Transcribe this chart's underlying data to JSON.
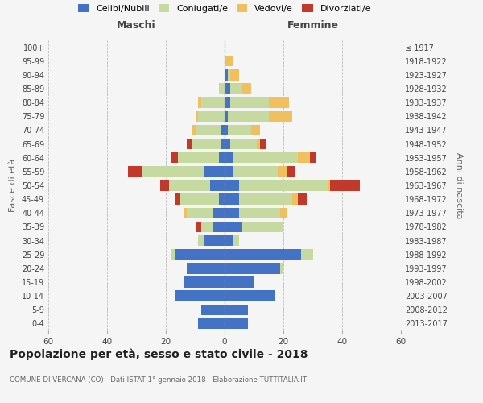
{
  "age_groups": [
    "0-4",
    "5-9",
    "10-14",
    "15-19",
    "20-24",
    "25-29",
    "30-34",
    "35-39",
    "40-44",
    "45-49",
    "50-54",
    "55-59",
    "60-64",
    "65-69",
    "70-74",
    "75-79",
    "80-84",
    "85-89",
    "90-94",
    "95-99",
    "100+"
  ],
  "birth_years": [
    "2013-2017",
    "2008-2012",
    "2003-2007",
    "1998-2002",
    "1993-1997",
    "1988-1992",
    "1983-1987",
    "1978-1982",
    "1973-1977",
    "1968-1972",
    "1963-1967",
    "1958-1962",
    "1953-1957",
    "1948-1952",
    "1943-1947",
    "1938-1942",
    "1933-1937",
    "1928-1932",
    "1923-1927",
    "1918-1922",
    "≤ 1917"
  ],
  "colors": {
    "celibi": "#4472c4",
    "coniugati": "#c5d9a0",
    "vedovi": "#f0c060",
    "divorziati": "#c0392b"
  },
  "males": {
    "celibi": [
      9,
      8,
      17,
      14,
      13,
      17,
      7,
      4,
      4,
      2,
      5,
      7,
      2,
      1,
      1,
      0,
      0,
      0,
      0,
      0,
      0
    ],
    "coniugati": [
      0,
      0,
      0,
      0,
      0,
      1,
      2,
      4,
      9,
      13,
      14,
      21,
      14,
      10,
      9,
      9,
      8,
      2,
      0,
      0,
      0
    ],
    "vedovi": [
      0,
      0,
      0,
      0,
      0,
      0,
      0,
      0,
      1,
      0,
      0,
      0,
      0,
      0,
      1,
      1,
      1,
      0,
      0,
      0,
      0
    ],
    "divorziati": [
      0,
      0,
      0,
      0,
      0,
      0,
      0,
      2,
      0,
      2,
      3,
      5,
      2,
      2,
      0,
      0,
      0,
      0,
      0,
      0,
      0
    ]
  },
  "females": {
    "celibi": [
      8,
      8,
      17,
      10,
      19,
      26,
      3,
      6,
      5,
      5,
      5,
      3,
      3,
      2,
      1,
      1,
      2,
      2,
      1,
      0,
      0
    ],
    "coniugati": [
      0,
      0,
      0,
      0,
      1,
      4,
      2,
      14,
      14,
      18,
      30,
      15,
      22,
      9,
      8,
      14,
      13,
      4,
      1,
      0,
      0
    ],
    "vedovi": [
      0,
      0,
      0,
      0,
      0,
      0,
      0,
      0,
      2,
      2,
      1,
      3,
      4,
      1,
      3,
      8,
      7,
      3,
      3,
      3,
      0
    ],
    "divorziati": [
      0,
      0,
      0,
      0,
      0,
      0,
      0,
      0,
      0,
      3,
      10,
      3,
      2,
      2,
      0,
      0,
      0,
      0,
      0,
      0,
      0
    ]
  },
  "title": "Popolazione per età, sesso e stato civile - 2018",
  "subtitle": "COMUNE DI VERCANA (CO) - Dati ISTAT 1° gennaio 2018 - Elaborazione TUTTITALIA.IT",
  "xlabel_left": "Maschi",
  "xlabel_right": "Femmine",
  "ylabel_left": "Fasce di età",
  "ylabel_right": "Anni di nascita",
  "xlim": 60,
  "legend_labels": [
    "Celibi/Nubili",
    "Coniugati/e",
    "Vedovi/e",
    "Divorziati/e"
  ],
  "background_color": "#f5f5f5"
}
